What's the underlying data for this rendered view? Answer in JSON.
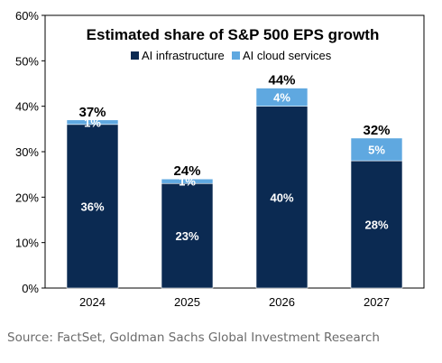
{
  "chart_data": {
    "type": "bar",
    "stacked": true,
    "title": "Estimated share of S&P 500 EPS growth",
    "categories": [
      "2024",
      "2025",
      "2026",
      "2027"
    ],
    "series": [
      {
        "name": "AI infrastructure",
        "values": [
          36,
          23,
          40,
          28
        ],
        "color": "#0b2a52",
        "labels": [
          "36%",
          "23%",
          "40%",
          "28%"
        ]
      },
      {
        "name": "AI cloud services",
        "values": [
          1,
          1,
          4,
          5
        ],
        "color": "#5fa8e0",
        "labels": [
          "1%",
          "1%",
          "4%",
          "5%"
        ]
      }
    ],
    "totals": [
      "37%",
      "24%",
      "44%",
      "32%"
    ],
    "ylim": [
      0,
      60
    ],
    "yticks": [
      0,
      10,
      20,
      30,
      40,
      50,
      60
    ],
    "ytick_labels": [
      "0%",
      "10%",
      "20%",
      "30%",
      "40%",
      "50%",
      "60%"
    ],
    "legend": "top-center",
    "grid": false
  },
  "source": "Source: FactSet, Goldman Sachs Global Investment Research"
}
